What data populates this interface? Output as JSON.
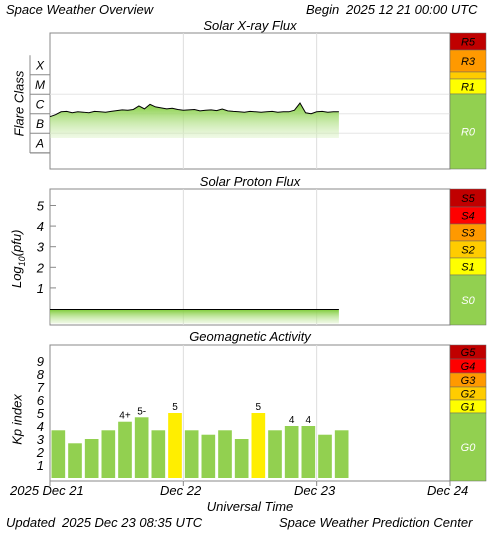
{
  "header": {
    "title": "Space Weather Overview",
    "begin_label": "Begin",
    "begin_date": "2025 12 21 00:00 UTC"
  },
  "footer": {
    "updated_label": "Updated",
    "updated_time": "2025 Dec 23 08:35 UTC",
    "center": "Space Weather Prediction Center"
  },
  "x_axis": {
    "label": "Universal Time",
    "ticks": [
      "2025 Dec 21",
      "Dec 22",
      "Dec 23",
      "Dec 24"
    ]
  },
  "colors": {
    "green": "#92d050",
    "yellow": "#ffff00",
    "gold": "#ffcc00",
    "orange": "#ff9900",
    "red": "#ff0000",
    "darkred": "#c00000",
    "bar_yellow": "#ffee00"
  },
  "chart_data": [
    {
      "type": "area",
      "title": "Solar X-ray Flux",
      "ylabel": "Flare Class",
      "y_scale": "log",
      "y_ticks": [
        "A",
        "B",
        "C",
        "M",
        "X"
      ],
      "x_range_hours": [
        0,
        72
      ],
      "x": [
        0,
        1,
        2,
        3,
        4,
        5,
        6,
        7,
        8,
        9,
        10,
        11,
        12,
        13,
        14,
        15,
        16,
        17,
        18,
        19,
        20,
        21,
        22,
        23,
        24,
        25,
        26,
        27,
        28,
        29,
        30,
        31,
        32,
        33,
        34,
        35,
        36,
        37,
        38,
        39,
        40,
        41,
        42,
        43,
        44,
        45,
        46,
        47,
        48,
        49,
        50,
        51,
        52
      ],
      "y_class": [
        1.35,
        1.45,
        1.6,
        1.62,
        1.55,
        1.6,
        1.58,
        1.55,
        1.62,
        1.6,
        1.58,
        1.62,
        1.66,
        1.7,
        1.68,
        1.72,
        1.9,
        1.75,
        1.98,
        1.85,
        1.8,
        1.75,
        1.78,
        1.72,
        1.68,
        1.7,
        1.72,
        1.65,
        1.68,
        1.7,
        1.66,
        1.74,
        1.65,
        1.62,
        1.6,
        1.58,
        1.62,
        1.6,
        1.58,
        1.6,
        1.62,
        1.58,
        1.6,
        1.6,
        1.68,
        2.05,
        1.55,
        1.5,
        1.6,
        1.62,
        1.58,
        1.6,
        1.6
      ],
      "scale_levels": [
        "R5",
        "R3",
        "R1",
        "R0"
      ]
    },
    {
      "type": "area",
      "title": "Solar Proton Flux",
      "ylabel": "Log10(pfu)",
      "y_ticks": [
        "1",
        "2",
        "3",
        "4",
        "5"
      ],
      "ylim": [
        -0.8,
        5.8
      ],
      "x_range_hours": [
        0,
        72
      ],
      "x": [
        0,
        4,
        8,
        12,
        16,
        20,
        24,
        28,
        32,
        36,
        40,
        44,
        48,
        52
      ],
      "values": [
        -0.05,
        -0.05,
        -0.05,
        -0.05,
        -0.05,
        -0.05,
        -0.05,
        -0.05,
        -0.05,
        -0.05,
        -0.05,
        -0.05,
        -0.05,
        -0.05
      ],
      "scale_levels": [
        "S5",
        "S4",
        "S3",
        "S2",
        "S1",
        "S0"
      ]
    },
    {
      "type": "bar",
      "title": "Geomagnetic Activity",
      "ylabel": "Kp index",
      "y_ticks": [
        "1",
        "2",
        "3",
        "4",
        "5",
        "6",
        "7",
        "8",
        "9"
      ],
      "ylim": [
        0,
        10
      ],
      "bar_width_hours": 3,
      "values": [
        3.67,
        2.67,
        3.0,
        3.67,
        4.33,
        4.67,
        3.67,
        5.0,
        3.67,
        3.33,
        3.67,
        3.0,
        5.0,
        3.67,
        4.0,
        4.0,
        3.33,
        3.67
      ],
      "bar_labels": [
        "",
        "",
        "",
        "",
        "4+",
        "5-",
        "",
        "5",
        "",
        "",
        "",
        "",
        "5",
        "",
        "4",
        "4",
        "",
        ""
      ],
      "scale_levels": [
        "G5",
        "G4",
        "G3",
        "G2",
        "G1",
        "G0"
      ]
    }
  ]
}
